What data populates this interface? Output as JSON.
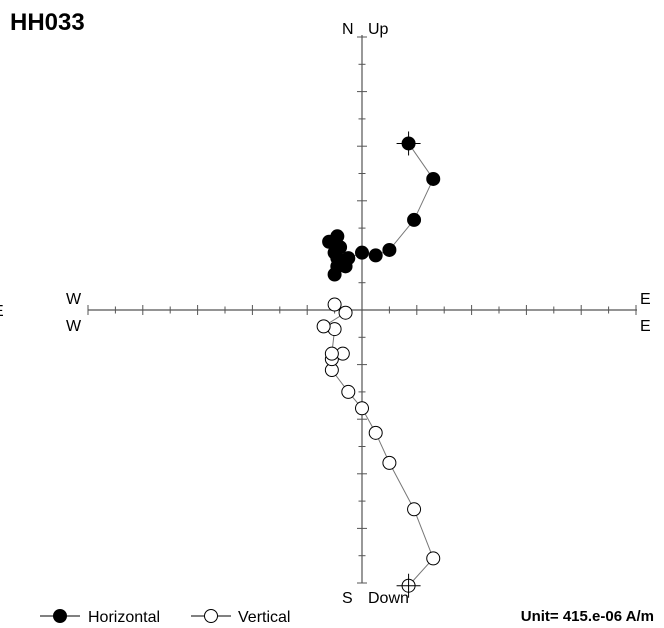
{
  "chart_data": {
    "type": "scatter",
    "title": "HH033",
    "unit_label": "Unit=  415.e-06 A/m",
    "axis_labels": {
      "north": "N",
      "up": "Up",
      "south": "S",
      "down": "Down",
      "west_top": "W",
      "west_bottom": "W",
      "east_top": "E",
      "east_bottom": "E",
      "left_edge": "E"
    },
    "legend": {
      "placement": "bottom-left",
      "horizontal_label": "Horizontal",
      "vertical_label": "Vertical"
    },
    "tick_step": 1,
    "xlim": [
      -10,
      10
    ],
    "ylim": [
      -10,
      10
    ],
    "series": [
      {
        "name": "Horizontal",
        "marker": "filled-circle",
        "color": "#000000",
        "points": [
          [
            1.7,
            6.1
          ],
          [
            2.6,
            4.8
          ],
          [
            1.9,
            3.3
          ],
          [
            1.0,
            2.2
          ],
          [
            0.5,
            2.0
          ],
          [
            0.0,
            2.1
          ],
          [
            -0.5,
            1.9
          ],
          [
            -0.6,
            1.6
          ],
          [
            -0.9,
            1.6
          ],
          [
            -1.0,
            1.3
          ],
          [
            -0.9,
            1.9
          ],
          [
            -0.8,
            2.3
          ],
          [
            -0.9,
            2.7
          ],
          [
            -1.2,
            2.5
          ],
          [
            -1.0,
            2.1
          ]
        ]
      },
      {
        "name": "Vertical",
        "marker": "open-circle",
        "color": "#ffffff",
        "points": [
          [
            1.7,
            -10.1
          ],
          [
            2.6,
            -9.1
          ],
          [
            1.9,
            -7.3
          ],
          [
            1.0,
            -5.6
          ],
          [
            0.5,
            -4.5
          ],
          [
            0.0,
            -3.6
          ],
          [
            -0.5,
            -3.0
          ],
          [
            -1.1,
            -2.2
          ],
          [
            -1.1,
            -1.8
          ],
          [
            -0.7,
            -1.6
          ],
          [
            -1.1,
            -1.6
          ],
          [
            -1.0,
            -0.7
          ],
          [
            -1.4,
            -0.6
          ],
          [
            -0.6,
            -0.1
          ],
          [
            -1.0,
            0.2
          ]
        ]
      }
    ],
    "first_point_marker": "cross"
  }
}
